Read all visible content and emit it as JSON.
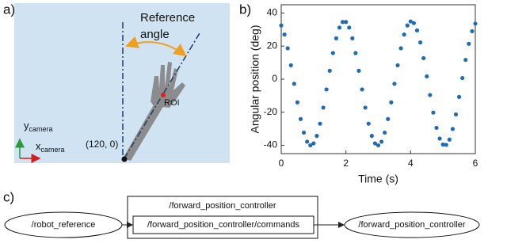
{
  "panels": {
    "a": "a)",
    "b": "b)",
    "c": "c)"
  },
  "schematic": {
    "reference_angle": [
      "Reference",
      "angle"
    ],
    "roi": "ROI",
    "origin": "(120, 0)",
    "y_axis": "y",
    "y_sub": "camera",
    "x_axis": "x",
    "x_sub": "camera"
  },
  "chart_data": {
    "type": "scatter",
    "xlabel": "Time (s)",
    "ylabel": "Angular position (deg)",
    "color": "#1f6cb5",
    "grid": false,
    "x": [
      0,
      0.1,
      0.2,
      0.3,
      0.4,
      0.5,
      0.6,
      0.7,
      0.8,
      0.9,
      1,
      1.1,
      1.2,
      1.3,
      1.4,
      1.5,
      1.6,
      1.7,
      1.8,
      1.9,
      2,
      2.1,
      2.2,
      2.3,
      2.4,
      2.5,
      2.6,
      2.7,
      2.8,
      2.9,
      3,
      3.1,
      3.2,
      3.3,
      3.4,
      3.5,
      3.6,
      3.7,
      3.8,
      3.9,
      4,
      4.1,
      4.2,
      4.3,
      4.4,
      4.5,
      4.6,
      4.7,
      4.8,
      4.9,
      5,
      5.1,
      5.2,
      5.3,
      5.4,
      5.5,
      5.6,
      5.7,
      5.8,
      5.9,
      6
    ],
    "values": [
      32.5,
      27.0,
      18.7,
      8.4,
      -2.8,
      -14.0,
      -24.1,
      -32.3,
      -37.8,
      -40.0,
      -38.8,
      -34.3,
      -26.9,
      -17.2,
      -6.2,
      5.1,
      15.8,
      24.7,
      31.2,
      34.6,
      34.6,
      31.2,
      24.7,
      15.8,
      5.1,
      -6.2,
      -17.2,
      -26.9,
      -34.3,
      -38.8,
      -40.0,
      -37.8,
      -32.3,
      -24.1,
      -14.0,
      -2.8,
      8.4,
      18.7,
      27.0,
      32.5,
      34.9,
      33.9,
      29.5,
      22.2,
      12.7,
      1.7,
      -9.6,
      -20.2,
      -29.4,
      -35.9,
      -39.5,
      -39.7,
      -36.5,
      -30.1,
      -21.3,
      -10.7,
      0.7,
      11.7,
      21.4,
      29.0,
      33.6
    ],
    "xlim": [
      0,
      6
    ],
    "xticks": [
      0,
      2,
      4,
      6
    ],
    "ylim": [
      -45,
      45
    ],
    "yticks": [
      -40,
      -20,
      0,
      20,
      40
    ]
  },
  "graph": {
    "source": "/robot_reference",
    "group": "/forward_position_controller",
    "topic": "/forward_position_controller/commands",
    "target": "/forward_position_controller"
  }
}
